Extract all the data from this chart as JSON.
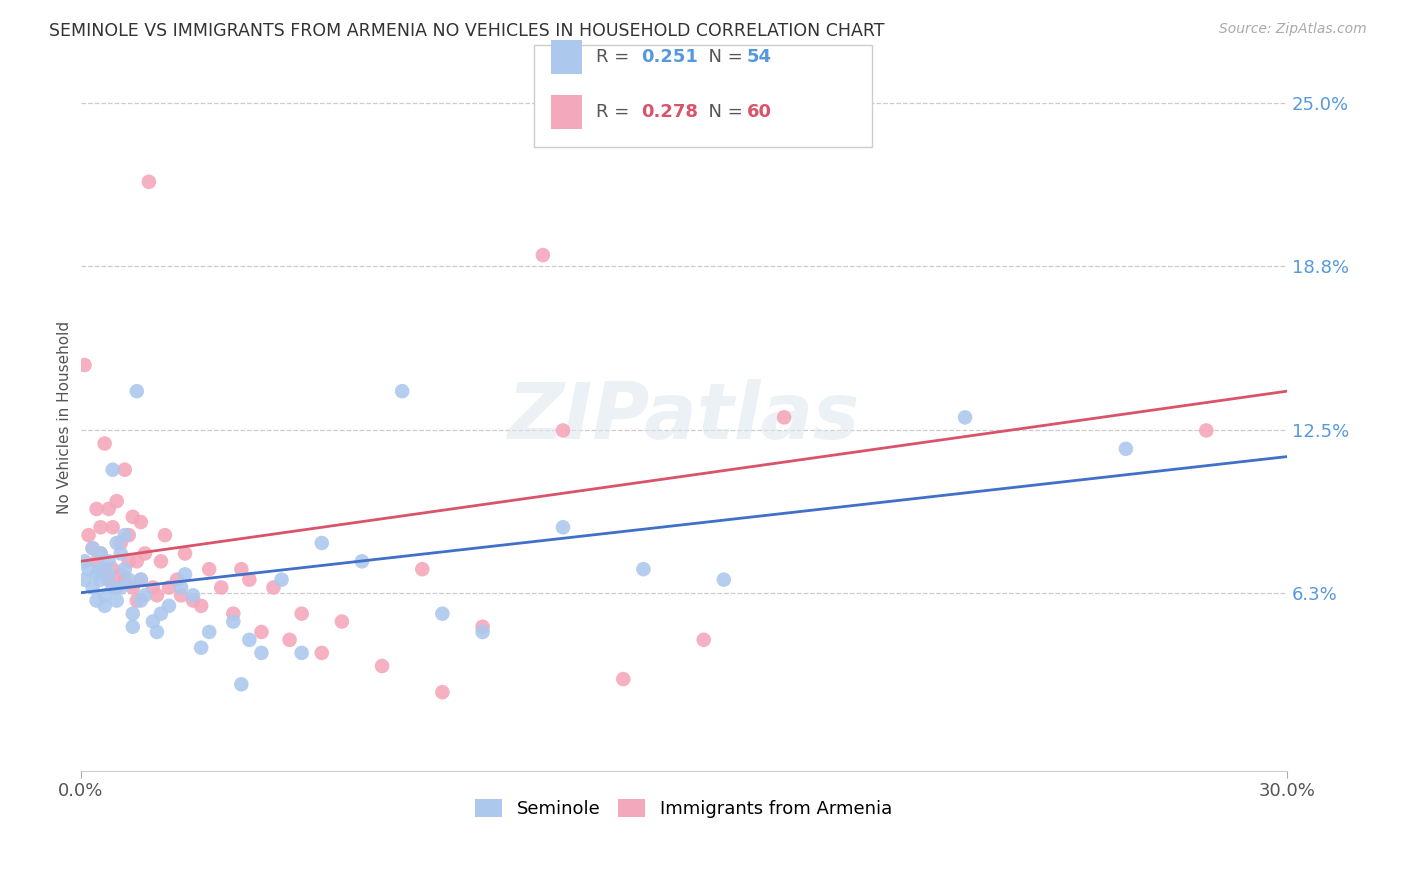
{
  "title": "SEMINOLE VS IMMIGRANTS FROM ARMENIA NO VEHICLES IN HOUSEHOLD CORRELATION CHART",
  "source_text": "Source: ZipAtlas.com",
  "ylabel": "No Vehicles in Household",
  "xlim": [
    0.0,
    0.3
  ],
  "ylim": [
    -0.005,
    0.265
  ],
  "yticks": [
    0.063,
    0.125,
    0.188,
    0.25
  ],
  "ytick_labels": [
    "6.3%",
    "12.5%",
    "18.8%",
    "25.0%"
  ],
  "xtick_left": "0.0%",
  "xtick_right": "30.0%",
  "seminole_R": "0.251",
  "seminole_N": "54",
  "armenia_R": "0.278",
  "armenia_N": "60",
  "seminole_color": "#adc8ed",
  "armenia_color": "#f4a8bb",
  "seminole_line_color": "#4070c8",
  "armenia_line_color": "#d9546a",
  "legend_label_seminole": "Seminole",
  "legend_label_armenia": "Immigrants from Armenia",
  "watermark": "ZIPatlas",
  "background_color": "#ffffff",
  "grid_color": "#cccccc",
  "seminole_x": [
    0.001,
    0.001,
    0.002,
    0.003,
    0.003,
    0.004,
    0.004,
    0.005,
    0.005,
    0.005,
    0.006,
    0.006,
    0.007,
    0.007,
    0.008,
    0.008,
    0.009,
    0.009,
    0.01,
    0.01,
    0.011,
    0.011,
    0.012,
    0.013,
    0.013,
    0.014,
    0.015,
    0.015,
    0.016,
    0.018,
    0.019,
    0.02,
    0.022,
    0.025,
    0.026,
    0.028,
    0.03,
    0.032,
    0.038,
    0.04,
    0.042,
    0.045,
    0.05,
    0.055,
    0.06,
    0.07,
    0.08,
    0.09,
    0.1,
    0.12,
    0.14,
    0.16,
    0.22,
    0.26
  ],
  "seminole_y": [
    0.075,
    0.068,
    0.072,
    0.08,
    0.065,
    0.07,
    0.06,
    0.078,
    0.072,
    0.068,
    0.062,
    0.058,
    0.075,
    0.07,
    0.11,
    0.065,
    0.082,
    0.06,
    0.078,
    0.065,
    0.085,
    0.072,
    0.068,
    0.055,
    0.05,
    0.14,
    0.068,
    0.06,
    0.062,
    0.052,
    0.048,
    0.055,
    0.058,
    0.065,
    0.07,
    0.062,
    0.042,
    0.048,
    0.052,
    0.028,
    0.045,
    0.04,
    0.068,
    0.04,
    0.082,
    0.075,
    0.14,
    0.055,
    0.048,
    0.088,
    0.072,
    0.068,
    0.13,
    0.118
  ],
  "armenia_x": [
    0.001,
    0.002,
    0.003,
    0.004,
    0.004,
    0.005,
    0.005,
    0.006,
    0.006,
    0.007,
    0.007,
    0.008,
    0.008,
    0.009,
    0.009,
    0.01,
    0.01,
    0.011,
    0.011,
    0.012,
    0.012,
    0.013,
    0.013,
    0.014,
    0.014,
    0.015,
    0.015,
    0.016,
    0.017,
    0.018,
    0.019,
    0.02,
    0.021,
    0.022,
    0.024,
    0.025,
    0.026,
    0.028,
    0.03,
    0.032,
    0.035,
    0.038,
    0.04,
    0.042,
    0.045,
    0.048,
    0.052,
    0.055,
    0.06,
    0.065,
    0.075,
    0.085,
    0.09,
    0.1,
    0.115,
    0.12,
    0.135,
    0.155,
    0.175,
    0.28
  ],
  "armenia_y": [
    0.15,
    0.085,
    0.08,
    0.095,
    0.075,
    0.088,
    0.078,
    0.12,
    0.072,
    0.095,
    0.068,
    0.088,
    0.072,
    0.098,
    0.065,
    0.082,
    0.07,
    0.11,
    0.068,
    0.085,
    0.075,
    0.092,
    0.065,
    0.075,
    0.06,
    0.09,
    0.068,
    0.078,
    0.22,
    0.065,
    0.062,
    0.075,
    0.085,
    0.065,
    0.068,
    0.062,
    0.078,
    0.06,
    0.058,
    0.072,
    0.065,
    0.055,
    0.072,
    0.068,
    0.048,
    0.065,
    0.045,
    0.055,
    0.04,
    0.052,
    0.035,
    0.072,
    0.025,
    0.05,
    0.192,
    0.125,
    0.03,
    0.045,
    0.13,
    0.125
  ]
}
